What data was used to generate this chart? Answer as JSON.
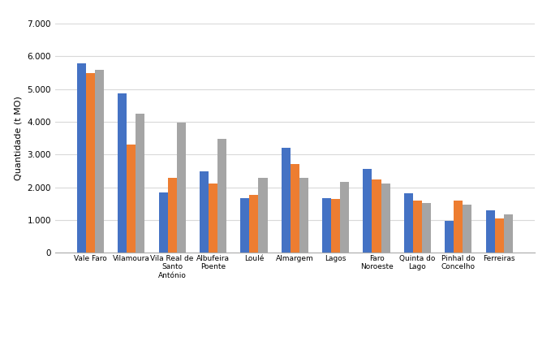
{
  "categories": [
    "Vale Faro",
    "Vilamoura",
    "Vila Real de\nSanto\nAntónio",
    "Albufeira\nPoente",
    "Loulé",
    "Almargem",
    "Lagos",
    "Faro\nNoroeste",
    "Quinta do\nLago",
    "Pinhal do\nConcelho",
    "Ferreiras"
  ],
  "series_2013": [
    5780,
    4880,
    1840,
    2480,
    1680,
    3200,
    1660,
    2560,
    1820,
    980,
    1290
  ],
  "series_2014": [
    5480,
    3300,
    2300,
    2120,
    1760,
    2720,
    1650,
    2250,
    1590,
    1590,
    1050
  ],
  "series_2015": [
    5580,
    4250,
    3980,
    3490,
    2280,
    2300,
    2160,
    2120,
    1510,
    1480,
    1160
  ],
  "color_2013": "#4472C4",
  "color_2014": "#ED7D31",
  "color_2015": "#A5A5A5",
  "ylabel": "Quantidade (t MO)",
  "ylim": [
    0,
    7000
  ],
  "yticks": [
    0,
    1000,
    2000,
    3000,
    4000,
    5000,
    6000,
    7000
  ],
  "bar_width": 0.22,
  "grid_color": "#D9D9D9",
  "background_color": "#FFFFFF"
}
